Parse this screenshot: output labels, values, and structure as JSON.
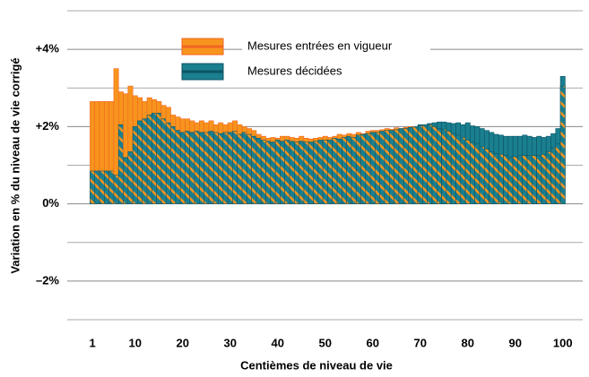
{
  "chart_data": {
    "type": "bar",
    "x_label": "Centièmes de niveau de vie",
    "y_label": "Variation en % du niveau de vie corrigé",
    "x": [
      1,
      2,
      3,
      4,
      5,
      6,
      7,
      8,
      9,
      10,
      11,
      12,
      13,
      14,
      15,
      16,
      17,
      18,
      19,
      20,
      21,
      22,
      23,
      24,
      25,
      26,
      27,
      28,
      29,
      30,
      31,
      32,
      33,
      34,
      35,
      36,
      37,
      38,
      39,
      40,
      41,
      42,
      43,
      44,
      45,
      46,
      47,
      48,
      49,
      50,
      51,
      52,
      53,
      54,
      55,
      56,
      57,
      58,
      59,
      60,
      61,
      62,
      63,
      64,
      65,
      66,
      67,
      68,
      69,
      70,
      71,
      72,
      73,
      74,
      75,
      76,
      77,
      78,
      79,
      80,
      81,
      82,
      83,
      84,
      85,
      86,
      87,
      88,
      89,
      90,
      91,
      92,
      93,
      94,
      95,
      96,
      97,
      98,
      99,
      100
    ],
    "xlim": [
      -4.3,
      104.2
    ],
    "xticks": [
      1,
      10,
      20,
      30,
      40,
      50,
      60,
      70,
      80,
      90,
      100
    ],
    "ylim": [
      -3,
      5
    ],
    "yticks": [
      {
        "value": -2,
        "label": "–2%"
      },
      {
        "value": 0,
        "label": "0%"
      },
      {
        "value": 2,
        "label": "+2%"
      },
      {
        "value": 4,
        "label": "+4%"
      }
    ],
    "minor_yticks": [
      -3,
      -1,
      1,
      3,
      5
    ],
    "grid": true,
    "series": [
      {
        "name": "Mesures entrées en vigueur",
        "color": "#f7941d",
        "edge_color": "#f26522",
        "values": [
          2.65,
          2.65,
          2.65,
          2.65,
          2.65,
          3.5,
          2.9,
          2.85,
          3.05,
          2.8,
          2.75,
          2.65,
          2.75,
          2.7,
          2.65,
          2.55,
          2.5,
          2.3,
          2.25,
          2.2,
          2.2,
          2.15,
          2.1,
          2.15,
          2.1,
          2.15,
          2.05,
          2.1,
          2.05,
          2.1,
          2.15,
          2.05,
          2.0,
          1.95,
          1.9,
          1.8,
          1.75,
          1.7,
          1.72,
          1.7,
          1.75,
          1.75,
          1.72,
          1.7,
          1.75,
          1.7,
          1.68,
          1.7,
          1.72,
          1.75,
          1.72,
          1.75,
          1.8,
          1.78,
          1.82,
          1.8,
          1.85,
          1.82,
          1.88,
          1.9,
          1.9,
          1.92,
          1.95,
          1.93,
          1.97,
          1.95,
          1.98,
          2.0,
          2.0,
          2.02,
          2.05,
          2.05,
          2.0,
          1.95,
          1.93,
          1.88,
          1.82,
          1.78,
          1.72,
          1.65,
          1.6,
          1.55,
          1.48,
          1.42,
          1.35,
          1.3,
          1.28,
          1.25,
          1.2,
          1.22,
          1.25,
          1.25,
          1.25,
          1.25,
          1.25,
          1.28,
          1.35,
          1.45,
          1.55,
          3.05
        ]
      },
      {
        "name": "Mesures décidées",
        "color": "#1a7f8e",
        "edge_color": "#0b5566",
        "values": [
          0.85,
          0.85,
          0.85,
          0.85,
          0.85,
          0.75,
          2.05,
          1.2,
          1.35,
          2.0,
          2.15,
          2.2,
          2.3,
          2.35,
          2.35,
          2.2,
          2.1,
          2.0,
          1.9,
          1.85,
          1.88,
          1.85,
          1.88,
          1.85,
          1.85,
          1.88,
          1.85,
          1.82,
          1.85,
          1.85,
          1.88,
          1.8,
          1.85,
          1.8,
          1.75,
          1.7,
          1.65,
          1.62,
          1.6,
          1.65,
          1.62,
          1.65,
          1.62,
          1.6,
          1.62,
          1.6,
          1.6,
          1.62,
          1.65,
          1.65,
          1.65,
          1.7,
          1.68,
          1.72,
          1.75,
          1.72,
          1.78,
          1.8,
          1.82,
          1.85,
          1.85,
          1.88,
          1.9,
          1.9,
          1.92,
          1.95,
          1.95,
          1.98,
          2.0,
          2.05,
          2.05,
          2.08,
          2.1,
          2.12,
          2.12,
          2.1,
          2.08,
          2.1,
          2.05,
          2.1,
          2.02,
          2.0,
          1.95,
          1.9,
          1.85,
          1.8,
          1.78,
          1.75,
          1.75,
          1.75,
          1.75,
          1.78,
          1.75,
          1.72,
          1.75,
          1.72,
          1.75,
          1.82,
          1.95,
          3.3
        ]
      }
    ]
  }
}
